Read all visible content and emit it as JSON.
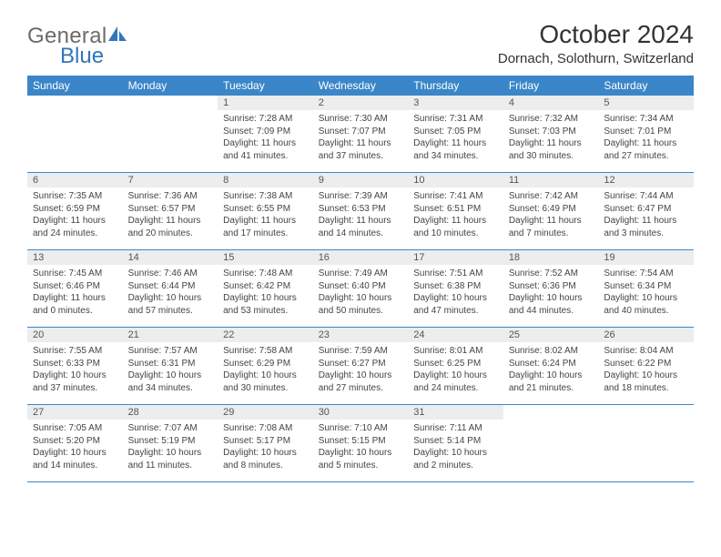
{
  "logo": {
    "word1": "General",
    "word2": "Blue"
  },
  "title": "October 2024",
  "location": "Dornach, Solothurn, Switzerland",
  "header_bg_color": "#3b86c8",
  "daynum_bg_color": "#ededed",
  "weekdays": [
    "Sunday",
    "Monday",
    "Tuesday",
    "Wednesday",
    "Thursday",
    "Friday",
    "Saturday"
  ],
  "weeks": [
    [
      null,
      null,
      {
        "n": "1",
        "sr": "Sunrise: 7:28 AM",
        "ss": "Sunset: 7:09 PM",
        "d1": "Daylight: 11 hours",
        "d2": "and 41 minutes."
      },
      {
        "n": "2",
        "sr": "Sunrise: 7:30 AM",
        "ss": "Sunset: 7:07 PM",
        "d1": "Daylight: 11 hours",
        "d2": "and 37 minutes."
      },
      {
        "n": "3",
        "sr": "Sunrise: 7:31 AM",
        "ss": "Sunset: 7:05 PM",
        "d1": "Daylight: 11 hours",
        "d2": "and 34 minutes."
      },
      {
        "n": "4",
        "sr": "Sunrise: 7:32 AM",
        "ss": "Sunset: 7:03 PM",
        "d1": "Daylight: 11 hours",
        "d2": "and 30 minutes."
      },
      {
        "n": "5",
        "sr": "Sunrise: 7:34 AM",
        "ss": "Sunset: 7:01 PM",
        "d1": "Daylight: 11 hours",
        "d2": "and 27 minutes."
      }
    ],
    [
      {
        "n": "6",
        "sr": "Sunrise: 7:35 AM",
        "ss": "Sunset: 6:59 PM",
        "d1": "Daylight: 11 hours",
        "d2": "and 24 minutes."
      },
      {
        "n": "7",
        "sr": "Sunrise: 7:36 AM",
        "ss": "Sunset: 6:57 PM",
        "d1": "Daylight: 11 hours",
        "d2": "and 20 minutes."
      },
      {
        "n": "8",
        "sr": "Sunrise: 7:38 AM",
        "ss": "Sunset: 6:55 PM",
        "d1": "Daylight: 11 hours",
        "d2": "and 17 minutes."
      },
      {
        "n": "9",
        "sr": "Sunrise: 7:39 AM",
        "ss": "Sunset: 6:53 PM",
        "d1": "Daylight: 11 hours",
        "d2": "and 14 minutes."
      },
      {
        "n": "10",
        "sr": "Sunrise: 7:41 AM",
        "ss": "Sunset: 6:51 PM",
        "d1": "Daylight: 11 hours",
        "d2": "and 10 minutes."
      },
      {
        "n": "11",
        "sr": "Sunrise: 7:42 AM",
        "ss": "Sunset: 6:49 PM",
        "d1": "Daylight: 11 hours",
        "d2": "and 7 minutes."
      },
      {
        "n": "12",
        "sr": "Sunrise: 7:44 AM",
        "ss": "Sunset: 6:47 PM",
        "d1": "Daylight: 11 hours",
        "d2": "and 3 minutes."
      }
    ],
    [
      {
        "n": "13",
        "sr": "Sunrise: 7:45 AM",
        "ss": "Sunset: 6:46 PM",
        "d1": "Daylight: 11 hours",
        "d2": "and 0 minutes."
      },
      {
        "n": "14",
        "sr": "Sunrise: 7:46 AM",
        "ss": "Sunset: 6:44 PM",
        "d1": "Daylight: 10 hours",
        "d2": "and 57 minutes."
      },
      {
        "n": "15",
        "sr": "Sunrise: 7:48 AM",
        "ss": "Sunset: 6:42 PM",
        "d1": "Daylight: 10 hours",
        "d2": "and 53 minutes."
      },
      {
        "n": "16",
        "sr": "Sunrise: 7:49 AM",
        "ss": "Sunset: 6:40 PM",
        "d1": "Daylight: 10 hours",
        "d2": "and 50 minutes."
      },
      {
        "n": "17",
        "sr": "Sunrise: 7:51 AM",
        "ss": "Sunset: 6:38 PM",
        "d1": "Daylight: 10 hours",
        "d2": "and 47 minutes."
      },
      {
        "n": "18",
        "sr": "Sunrise: 7:52 AM",
        "ss": "Sunset: 6:36 PM",
        "d1": "Daylight: 10 hours",
        "d2": "and 44 minutes."
      },
      {
        "n": "19",
        "sr": "Sunrise: 7:54 AM",
        "ss": "Sunset: 6:34 PM",
        "d1": "Daylight: 10 hours",
        "d2": "and 40 minutes."
      }
    ],
    [
      {
        "n": "20",
        "sr": "Sunrise: 7:55 AM",
        "ss": "Sunset: 6:33 PM",
        "d1": "Daylight: 10 hours",
        "d2": "and 37 minutes."
      },
      {
        "n": "21",
        "sr": "Sunrise: 7:57 AM",
        "ss": "Sunset: 6:31 PM",
        "d1": "Daylight: 10 hours",
        "d2": "and 34 minutes."
      },
      {
        "n": "22",
        "sr": "Sunrise: 7:58 AM",
        "ss": "Sunset: 6:29 PM",
        "d1": "Daylight: 10 hours",
        "d2": "and 30 minutes."
      },
      {
        "n": "23",
        "sr": "Sunrise: 7:59 AM",
        "ss": "Sunset: 6:27 PM",
        "d1": "Daylight: 10 hours",
        "d2": "and 27 minutes."
      },
      {
        "n": "24",
        "sr": "Sunrise: 8:01 AM",
        "ss": "Sunset: 6:25 PM",
        "d1": "Daylight: 10 hours",
        "d2": "and 24 minutes."
      },
      {
        "n": "25",
        "sr": "Sunrise: 8:02 AM",
        "ss": "Sunset: 6:24 PM",
        "d1": "Daylight: 10 hours",
        "d2": "and 21 minutes."
      },
      {
        "n": "26",
        "sr": "Sunrise: 8:04 AM",
        "ss": "Sunset: 6:22 PM",
        "d1": "Daylight: 10 hours",
        "d2": "and 18 minutes."
      }
    ],
    [
      {
        "n": "27",
        "sr": "Sunrise: 7:05 AM",
        "ss": "Sunset: 5:20 PM",
        "d1": "Daylight: 10 hours",
        "d2": "and 14 minutes."
      },
      {
        "n": "28",
        "sr": "Sunrise: 7:07 AM",
        "ss": "Sunset: 5:19 PM",
        "d1": "Daylight: 10 hours",
        "d2": "and 11 minutes."
      },
      {
        "n": "29",
        "sr": "Sunrise: 7:08 AM",
        "ss": "Sunset: 5:17 PM",
        "d1": "Daylight: 10 hours",
        "d2": "and 8 minutes."
      },
      {
        "n": "30",
        "sr": "Sunrise: 7:10 AM",
        "ss": "Sunset: 5:15 PM",
        "d1": "Daylight: 10 hours",
        "d2": "and 5 minutes."
      },
      {
        "n": "31",
        "sr": "Sunrise: 7:11 AM",
        "ss": "Sunset: 5:14 PM",
        "d1": "Daylight: 10 hours",
        "d2": "and 2 minutes."
      },
      null,
      null
    ]
  ]
}
